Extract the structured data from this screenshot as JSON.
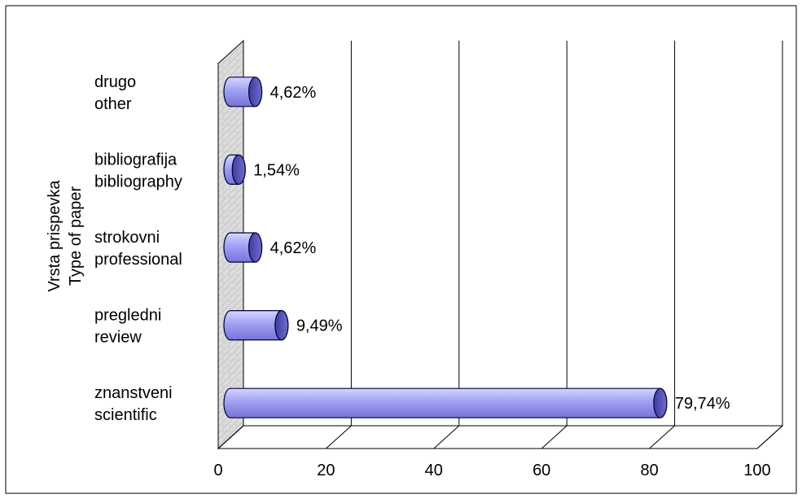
{
  "chart_data": {
    "type": "bar",
    "orientation": "horizontal",
    "ylabel": [
      "Vrsta prispevka",
      "Type of paper"
    ],
    "xlabel": "",
    "xlim": [
      0,
      100
    ],
    "xticks": [
      "0",
      "20",
      "40",
      "60",
      "80",
      "100"
    ],
    "grid": true,
    "categories": [
      [
        "znanstveni",
        "scientific"
      ],
      [
        "pregledni",
        "review"
      ],
      [
        "strokovni",
        "professional"
      ],
      [
        "bibliografija",
        "bibliography"
      ],
      [
        "drugo",
        "other"
      ]
    ],
    "values": [
      79.74,
      9.49,
      4.62,
      1.54,
      4.62
    ],
    "data_labels": [
      "79,74%",
      "9,49%",
      "4,62%",
      "1,54%",
      "4,62%"
    ],
    "colors": {
      "bar_fill": "#9d9df2",
      "bar_light": "#c8c8ff",
      "bar_cap": "#5858b8",
      "bar_stroke": "#000033",
      "wall": "#d8d8d8"
    }
  }
}
